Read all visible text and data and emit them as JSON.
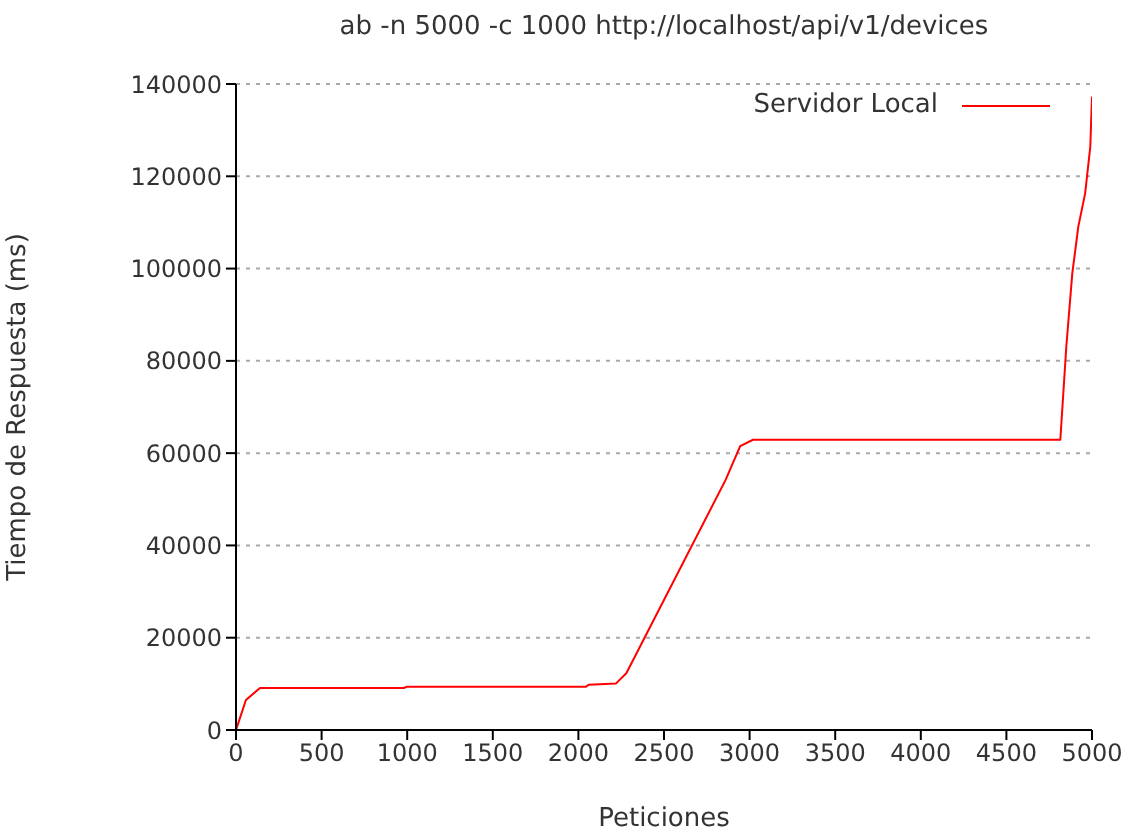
{
  "chart_data": {
    "type": "line",
    "title": "ab -n 5000 -c 1000 http://localhost/api/v1/devices",
    "xlabel": "Peticiones",
    "ylabel": "Tiempo de Respuesta (ms)",
    "x": [
      0,
      58,
      140,
      980,
      1000,
      2045,
      2060,
      2220,
      2280,
      2860,
      2945,
      3020,
      4815,
      4850,
      4885,
      4920,
      4960,
      4990,
      5000
    ],
    "series": [
      {
        "name": "Servidor Local",
        "color": "#ff0000",
        "values": [
          0,
          6500,
          9100,
          9100,
          9400,
          9400,
          9800,
          10100,
          12300,
          54200,
          61500,
          62900,
          62900,
          83100,
          99000,
          109100,
          116300,
          126400,
          137300
        ]
      }
    ],
    "xlim": [
      0,
      5000
    ],
    "xticks": [
      0,
      500,
      1000,
      1500,
      2000,
      2500,
      3000,
      3500,
      4000,
      4500,
      5000
    ],
    "ylim": [
      0,
      140000
    ],
    "yticks": [
      0,
      20000,
      40000,
      60000,
      80000,
      100000,
      120000,
      140000
    ],
    "grid": "y",
    "legend": "top right",
    "line_style": "solid"
  }
}
